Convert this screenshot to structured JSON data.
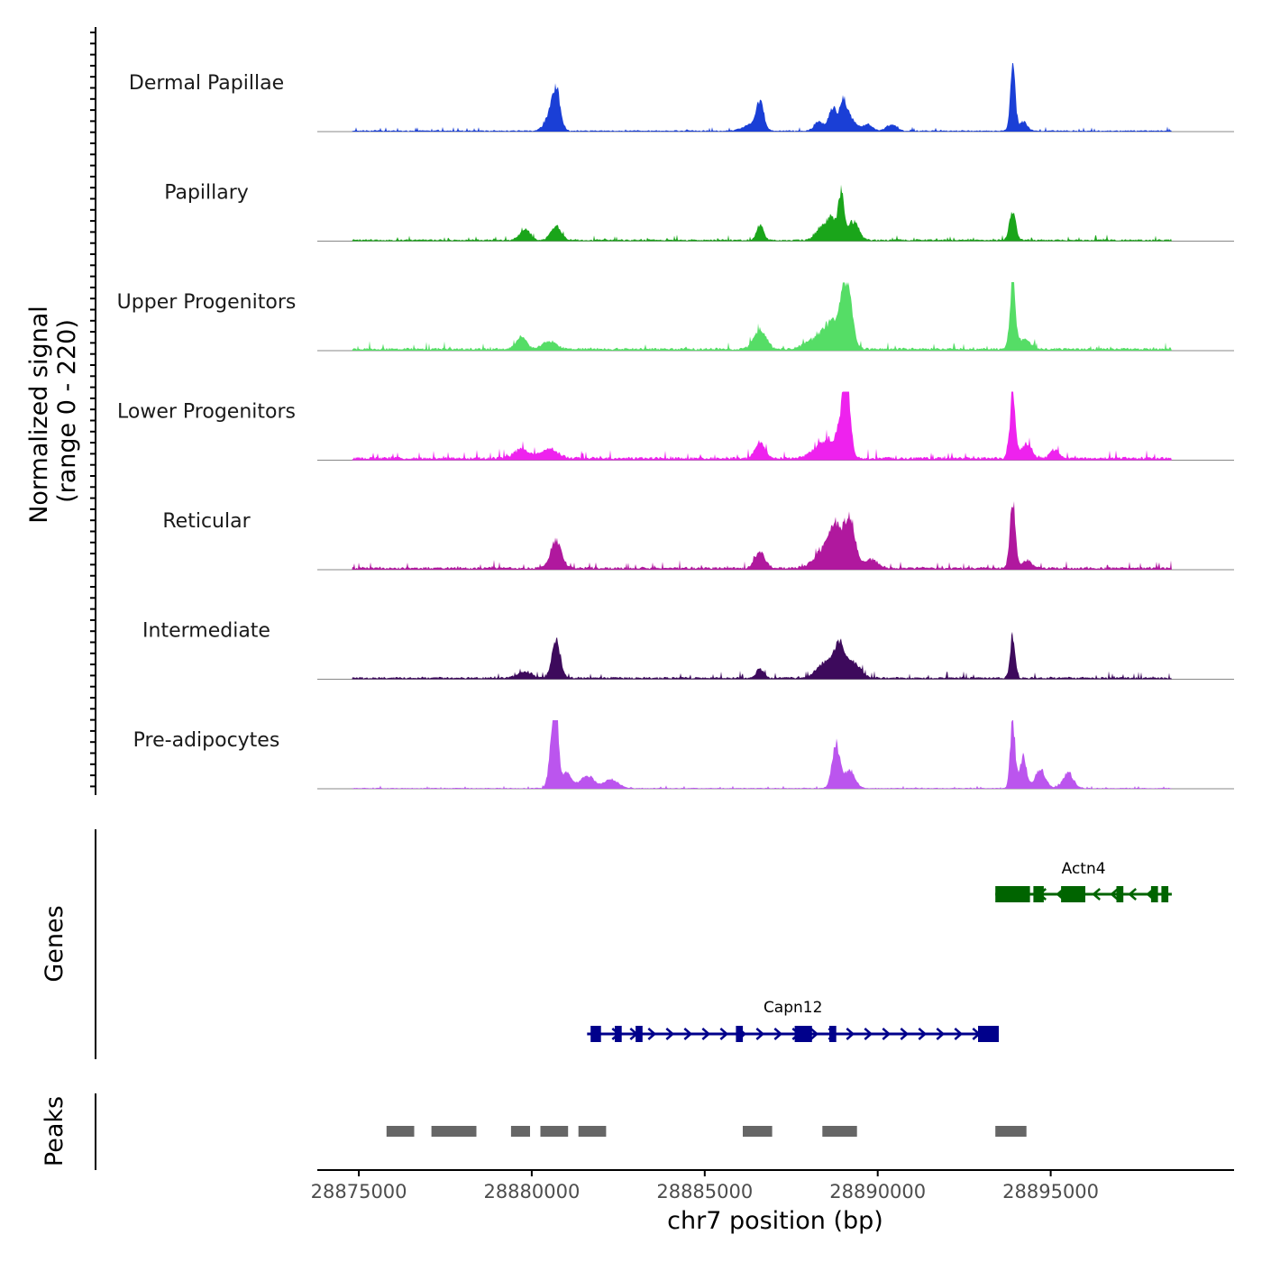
{
  "chart_data": {
    "type": "area",
    "chromosome": "chr7",
    "xlabel": "chr7 position (bp)",
    "xlim": [
      28873800,
      28900300
    ],
    "x_ticks": [
      28875000,
      28880000,
      28885000,
      28890000,
      28895000
    ],
    "x_tick_labels": [
      "28875000",
      "28880000",
      "28885000",
      "28890000",
      "28895000"
    ],
    "signal_panel": {
      "ylabel_line1": "Normalized signal",
      "ylabel_line2": "(range 0 - 220)",
      "ylim": [
        0,
        220
      ],
      "series": [
        {
          "name": "Dermal Papillae",
          "color": "#1a3fd6",
          "baseline": 3,
          "peaks": [
            [
              28880700,
              130,
              120
            ],
            [
              28880500,
              40,
              150
            ],
            [
              28886600,
              90,
              110
            ],
            [
              28886300,
              20,
              200
            ],
            [
              28888300,
              30,
              130
            ],
            [
              28888700,
              70,
              120
            ],
            [
              28889000,
              85,
              100
            ],
            [
              28889200,
              40,
              150
            ],
            [
              28889700,
              20,
              150
            ],
            [
              28890400,
              20,
              150
            ],
            [
              28893900,
              220,
              70
            ],
            [
              28894200,
              30,
              120
            ]
          ]
        },
        {
          "name": "Papillary",
          "color": "#1aa51a",
          "baseline": 4,
          "peaks": [
            [
              28879800,
              35,
              150
            ],
            [
              28880700,
              45,
              150
            ],
            [
              28886600,
              50,
              100
            ],
            [
              28888400,
              40,
              180
            ],
            [
              28888700,
              60,
              150
            ],
            [
              28888950,
              140,
              80
            ],
            [
              28889300,
              60,
              150
            ],
            [
              28893900,
              90,
              90
            ]
          ]
        },
        {
          "name": "Upper Progenitors",
          "color": "#55dd66",
          "baseline": 6,
          "peaks": [
            [
              28879700,
              40,
              150
            ],
            [
              28880500,
              25,
              200
            ],
            [
              28886600,
              60,
              180
            ],
            [
              28888200,
              30,
              300
            ],
            [
              28888700,
              80,
              250
            ],
            [
              28889100,
              210,
              150
            ],
            [
              28893900,
              210,
              80
            ],
            [
              28894200,
              30,
              200
            ]
          ]
        },
        {
          "name": "Lower Progenitors",
          "color": "#ee22ee",
          "baseline": 7,
          "peaks": [
            [
              28879700,
              30,
              200
            ],
            [
              28880500,
              30,
              250
            ],
            [
              28886600,
              50,
              150
            ],
            [
              28888500,
              60,
              300
            ],
            [
              28889000,
              110,
              150
            ],
            [
              28889100,
              200,
              100
            ],
            [
              28893900,
              210,
              80
            ],
            [
              28894300,
              50,
              150
            ],
            [
              28895100,
              30,
              120
            ]
          ]
        },
        {
          "name": "Reticular",
          "color": "#b0189e",
          "baseline": 6,
          "peaks": [
            [
              28880700,
              90,
              150
            ],
            [
              28886600,
              50,
              150
            ],
            [
              28888500,
              60,
              300
            ],
            [
              28888800,
              100,
              200
            ],
            [
              28889200,
              150,
              150
            ],
            [
              28889800,
              30,
              200
            ],
            [
              28893900,
              220,
              80
            ],
            [
              28894300,
              25,
              150
            ]
          ]
        },
        {
          "name": "Intermediate",
          "color": "#3d0a5c",
          "baseline": 5,
          "peaks": [
            [
              28879800,
              20,
              200
            ],
            [
              28880700,
              130,
              120
            ],
            [
              28886600,
              30,
              100
            ],
            [
              28888500,
              50,
              250
            ],
            [
              28888900,
              95,
              150
            ],
            [
              28889300,
              50,
              200
            ],
            [
              28893900,
              140,
              70
            ]
          ]
        },
        {
          "name": "Pre-adipocytes",
          "color": "#bb55ee",
          "baseline": 2,
          "peaks": [
            [
              28880600,
              150,
              100
            ],
            [
              28880700,
              220,
              70
            ],
            [
              28881000,
              50,
              150
            ],
            [
              28881600,
              40,
              200
            ],
            [
              28882300,
              30,
              200
            ],
            [
              28888800,
              140,
              120
            ],
            [
              28889200,
              60,
              150
            ],
            [
              28893900,
              220,
              70
            ],
            [
              28894200,
              100,
              100
            ],
            [
              28894700,
              60,
              150
            ],
            [
              28895500,
              50,
              150
            ]
          ]
        }
      ]
    },
    "genes_panel": {
      "ylabel": "Genes",
      "genes": [
        {
          "name": "Actn4",
          "strand": "-",
          "start": 28893400,
          "end": 28898500,
          "color": "#006400",
          "exons": [
            [
              28893400,
              28894400
            ],
            [
              28894500,
              28894800
            ],
            [
              28895300,
              28896000
            ],
            [
              28896900,
              28897100
            ],
            [
              28897900,
              28898100
            ],
            [
              28898200,
              28898400
            ]
          ]
        },
        {
          "name": "Capn12",
          "strand": "+",
          "start": 28881600,
          "end": 28893500,
          "color": "#00008b",
          "exons": [
            [
              28881700,
              28882000
            ],
            [
              28882400,
              28882600
            ],
            [
              28883000,
              28883200
            ],
            [
              28885900,
              28886100
            ],
            [
              28887600,
              28888100
            ],
            [
              28888600,
              28888800
            ],
            [
              28892900,
              28893500
            ]
          ]
        }
      ]
    },
    "peaks_panel": {
      "ylabel": "Peaks",
      "color": "#666666",
      "regions": [
        [
          28875800,
          28876600
        ],
        [
          28877100,
          28878400
        ],
        [
          28879400,
          28879950
        ],
        [
          28880250,
          28881050
        ],
        [
          28881350,
          28882150
        ],
        [
          28886100,
          28886950
        ],
        [
          28888400,
          28889400
        ],
        [
          28893400,
          28894300
        ]
      ]
    }
  }
}
